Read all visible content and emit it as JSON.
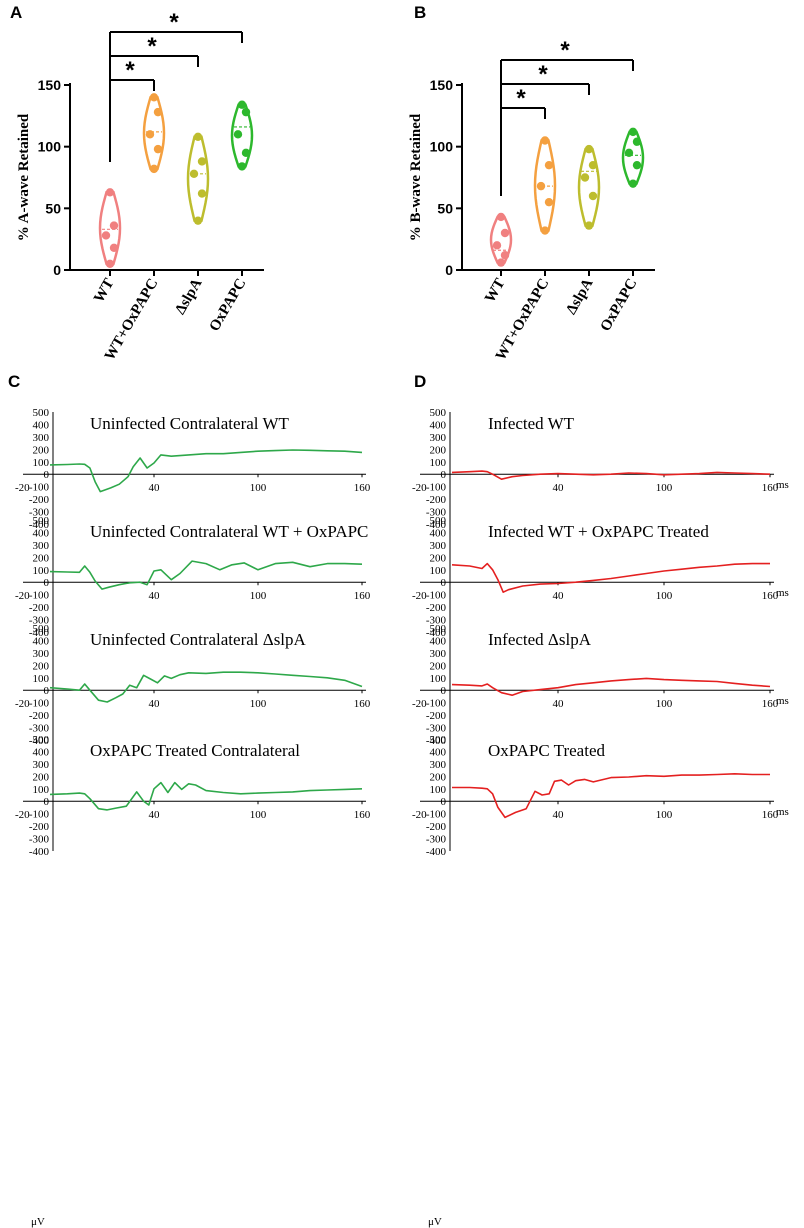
{
  "chart_data": [
    {
      "panel": "A",
      "type": "violin",
      "ylabel": "% A-wave Retained",
      "yticks": [
        0,
        50,
        100,
        150
      ],
      "ylim": [
        0,
        150
      ],
      "categories": [
        "WT",
        "WT+OxPAPC",
        "ΔslpA",
        "OxPAPC"
      ],
      "colors": [
        "#F08080",
        "#F4A040",
        "#BDBD2E",
        "#2DB82D"
      ],
      "points": [
        [
          5,
          18,
          28,
          36,
          63
        ],
        [
          82,
          98,
          110,
          128,
          140
        ],
        [
          40,
          62,
          78,
          88,
          108
        ],
        [
          84,
          95,
          110,
          128,
          134
        ]
      ],
      "medians": [
        33,
        112,
        78,
        116
      ],
      "significance": [
        {
          "from": 0,
          "to": 1,
          "label": "*"
        },
        {
          "from": 0,
          "to": 2,
          "label": "*"
        },
        {
          "from": 0,
          "to": 3,
          "label": "*"
        }
      ]
    },
    {
      "panel": "B",
      "type": "violin",
      "ylabel": "% B-wave Retained",
      "yticks": [
        0,
        50,
        100,
        150
      ],
      "ylim": [
        0,
        150
      ],
      "categories": [
        "WT",
        "WT+OxPAPC",
        "ΔslpA",
        "OxPAPC"
      ],
      "colors": [
        "#F08080",
        "#F4A040",
        "#BDBD2E",
        "#2DB82D"
      ],
      "points": [
        [
          6,
          12,
          20,
          30,
          43
        ],
        [
          32,
          55,
          68,
          85,
          105
        ],
        [
          36,
          60,
          75,
          85,
          98
        ],
        [
          70,
          85,
          95,
          104,
          112
        ]
      ],
      "medians": [
        16,
        68,
        80,
        93
      ],
      "significance": [
        {
          "from": 0,
          "to": 1,
          "label": "*"
        },
        {
          "from": 0,
          "to": 2,
          "label": "*"
        },
        {
          "from": 0,
          "to": 3,
          "label": "*"
        }
      ]
    },
    {
      "panel": "C",
      "type": "line",
      "color": "#2EA84A",
      "yticks": [
        500,
        400,
        300,
        200,
        100,
        0,
        -100,
        -200,
        -300,
        -400
      ],
      "xticks": [
        -20,
        40,
        100,
        160
      ],
      "ylabel": "μV",
      "traces": [
        {
          "title": "Uninfected Contralateral WT",
          "x": [
            -20,
            -10,
            -3,
            0,
            3,
            6,
            9,
            15,
            20,
            25,
            28,
            32,
            36,
            40,
            44,
            50,
            60,
            70,
            80,
            90,
            100,
            110,
            120,
            130,
            140,
            150,
            160
          ],
          "y": [
            75,
            78,
            82,
            80,
            50,
            -60,
            -140,
            -110,
            -80,
            -20,
            60,
            130,
            50,
            90,
            155,
            145,
            155,
            165,
            165,
            175,
            185,
            190,
            195,
            192,
            188,
            185,
            175
          ]
        },
        {
          "title": "Uninfected Contralateral WT + OxPAPC",
          "x": [
            -20,
            -10,
            -3,
            0,
            3,
            6,
            10,
            14,
            20,
            26,
            32,
            36,
            40,
            44,
            50,
            55,
            62,
            70,
            78,
            85,
            92,
            100,
            110,
            120,
            130,
            140,
            150,
            160
          ],
          "y": [
            85,
            82,
            80,
            130,
            80,
            10,
            -55,
            -40,
            -20,
            -5,
            0,
            -20,
            90,
            100,
            20,
            70,
            170,
            150,
            100,
            140,
            155,
            100,
            150,
            160,
            125,
            150,
            150,
            145
          ]
        },
        {
          "title": "Uninfected Contralateral ΔslpA",
          "x": [
            -20,
            -10,
            -3,
            0,
            3,
            8,
            13,
            18,
            22,
            26,
            30,
            34,
            38,
            42,
            46,
            50,
            55,
            60,
            70,
            80,
            90,
            100,
            110,
            120,
            130,
            140,
            150,
            160
          ],
          "y": [
            20,
            10,
            0,
            50,
            0,
            -80,
            -95,
            -60,
            -30,
            40,
            20,
            120,
            90,
            60,
            115,
            95,
            125,
            140,
            135,
            145,
            145,
            140,
            130,
            120,
            110,
            100,
            80,
            30
          ]
        },
        {
          "title": "OxPAPC Treated Contralateral",
          "x": [
            -20,
            -10,
            -3,
            0,
            3,
            8,
            13,
            18,
            24,
            30,
            34,
            37,
            40,
            44,
            48,
            52,
            56,
            60,
            64,
            70,
            80,
            90,
            100,
            110,
            120,
            130,
            140,
            150,
            160
          ],
          "y": [
            55,
            60,
            65,
            60,
            20,
            -60,
            -70,
            -55,
            -40,
            75,
            0,
            -30,
            100,
            150,
            70,
            150,
            95,
            140,
            130,
            85,
            70,
            60,
            65,
            70,
            75,
            85,
            90,
            95,
            100
          ]
        }
      ]
    },
    {
      "panel": "D",
      "type": "line",
      "color": "#E42020",
      "yticks": [
        500,
        400,
        300,
        200,
        100,
        0,
        -100,
        -200,
        -300,
        -400
      ],
      "xticks": [
        -20,
        40,
        100,
        160
      ],
      "xunit": "ms",
      "ylabel": "μV",
      "traces": [
        {
          "title": "Infected WT",
          "x": [
            -20,
            -10,
            -3,
            0,
            3,
            8,
            14,
            20,
            30,
            40,
            50,
            60,
            70,
            80,
            90,
            100,
            110,
            120,
            130,
            140,
            150,
            160
          ],
          "y": [
            15,
            20,
            25,
            20,
            0,
            -40,
            -20,
            -10,
            0,
            5,
            0,
            -5,
            0,
            10,
            5,
            -5,
            0,
            5,
            15,
            10,
            5,
            0
          ]
        },
        {
          "title": "Infected WT + OxPAPC Treated",
          "x": [
            -20,
            -10,
            -3,
            0,
            3,
            6,
            9,
            12,
            20,
            30,
            40,
            50,
            60,
            70,
            80,
            90,
            100,
            110,
            120,
            130,
            140,
            150,
            160
          ],
          "y": [
            140,
            130,
            110,
            150,
            100,
            20,
            -80,
            -60,
            -30,
            -15,
            -10,
            0,
            15,
            30,
            50,
            70,
            90,
            105,
            120,
            130,
            145,
            150,
            150
          ]
        },
        {
          "title": "Infected ΔslpA",
          "x": [
            -20,
            -10,
            -3,
            0,
            3,
            8,
            14,
            20,
            30,
            40,
            50,
            60,
            70,
            80,
            90,
            100,
            110,
            120,
            130,
            140,
            150,
            160
          ],
          "y": [
            45,
            40,
            35,
            50,
            20,
            -20,
            -40,
            -10,
            5,
            20,
            45,
            60,
            75,
            85,
            95,
            85,
            80,
            75,
            70,
            55,
            40,
            30
          ]
        },
        {
          "title": "OxPAPC Treated",
          "x": [
            -20,
            -10,
            -3,
            0,
            3,
            6,
            10,
            16,
            22,
            27,
            31,
            35,
            38,
            42,
            46,
            50,
            55,
            60,
            70,
            80,
            90,
            100,
            110,
            120,
            130,
            140,
            150,
            160
          ],
          "y": [
            110,
            110,
            105,
            100,
            60,
            -50,
            -130,
            -90,
            -60,
            80,
            50,
            60,
            160,
            170,
            130,
            165,
            175,
            155,
            190,
            195,
            205,
            200,
            210,
            210,
            215,
            220,
            215,
            215
          ]
        }
      ]
    }
  ]
}
